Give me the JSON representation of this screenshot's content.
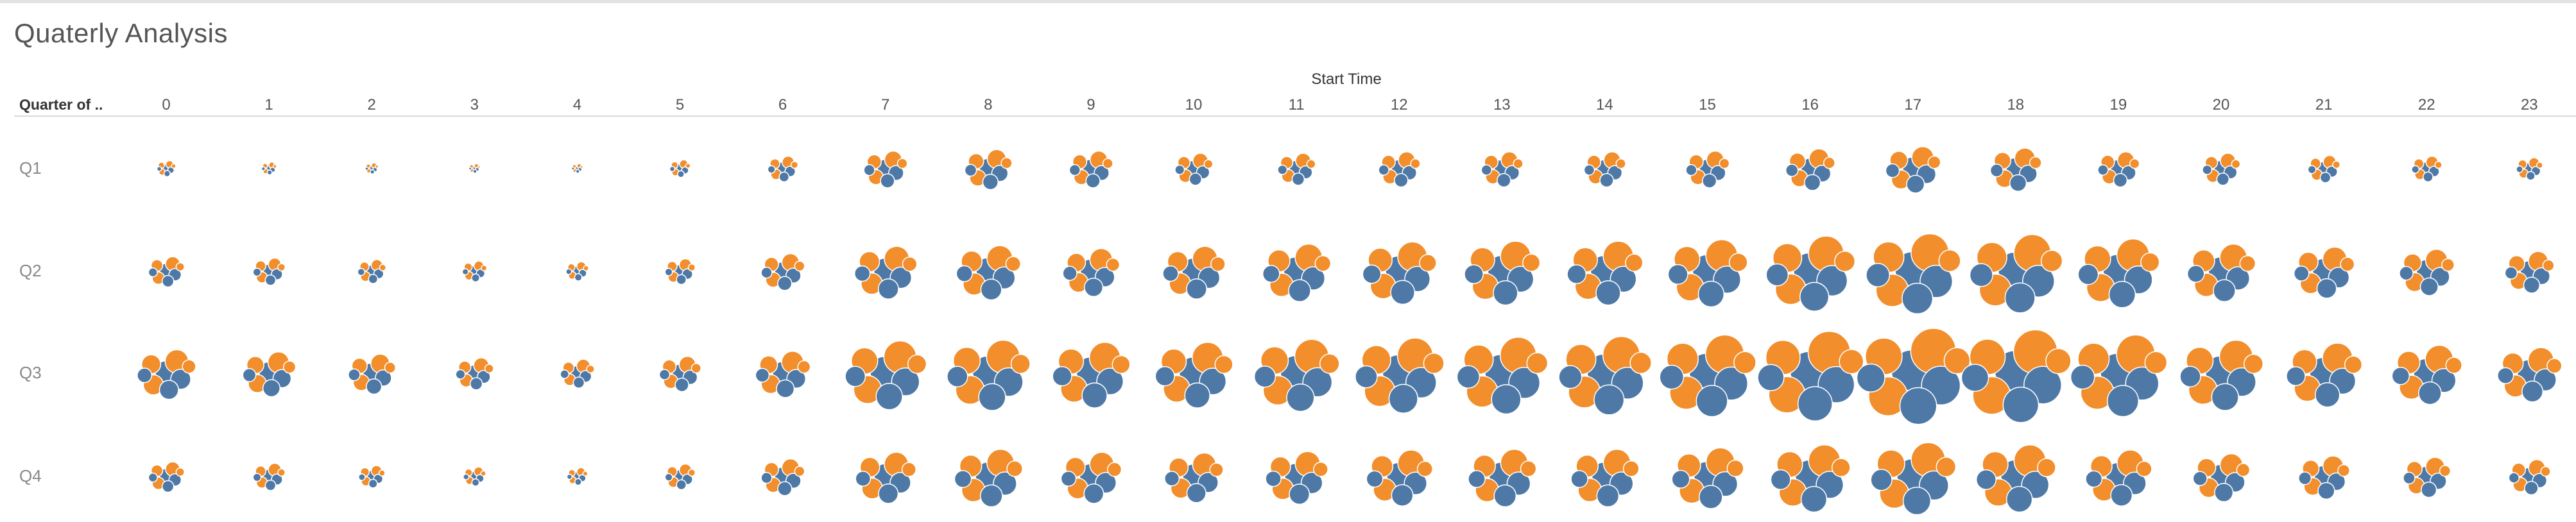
{
  "page": {
    "title": "Quaterly Analysis"
  },
  "chart_data": {
    "type": "packed-bubble",
    "title": "Quaterly Analysis",
    "column_header": "Start Time",
    "row_header": "Quarter of ..",
    "columns": [
      "0",
      "1",
      "2",
      "3",
      "4",
      "5",
      "6",
      "7",
      "8",
      "9",
      "10",
      "11",
      "12",
      "13",
      "14",
      "15",
      "16",
      "17",
      "18",
      "19",
      "20",
      "21",
      "22",
      "23"
    ],
    "rows": [
      "Q1",
      "Q2",
      "Q3",
      "Q4"
    ],
    "colors": {
      "blue": "#4e79a7",
      "orange": "#f28e2b"
    },
    "intensity": [
      [
        0.2,
        0.16,
        0.14,
        0.12,
        0.12,
        0.22,
        0.32,
        0.46,
        0.5,
        0.46,
        0.4,
        0.4,
        0.44,
        0.44,
        0.44,
        0.46,
        0.52,
        0.58,
        0.54,
        0.44,
        0.4,
        0.34,
        0.32,
        0.28
      ],
      [
        0.38,
        0.34,
        0.3,
        0.26,
        0.24,
        0.32,
        0.46,
        0.66,
        0.68,
        0.6,
        0.66,
        0.72,
        0.78,
        0.8,
        0.8,
        0.84,
        0.94,
        1.0,
        0.98,
        0.86,
        0.72,
        0.64,
        0.58,
        0.52
      ],
      [
        0.62,
        0.56,
        0.5,
        0.4,
        0.36,
        0.44,
        0.58,
        0.86,
        0.88,
        0.82,
        0.82,
        0.9,
        0.94,
        0.96,
        0.98,
        1.02,
        1.12,
        1.2,
        1.16,
        1.02,
        0.88,
        0.8,
        0.74,
        0.68
      ],
      [
        0.38,
        0.34,
        0.28,
        0.24,
        0.22,
        0.32,
        0.46,
        0.64,
        0.72,
        0.64,
        0.62,
        0.66,
        0.7,
        0.72,
        0.72,
        0.76,
        0.84,
        0.9,
        0.84,
        0.7,
        0.6,
        0.54,
        0.5,
        0.44
      ]
    ]
  }
}
